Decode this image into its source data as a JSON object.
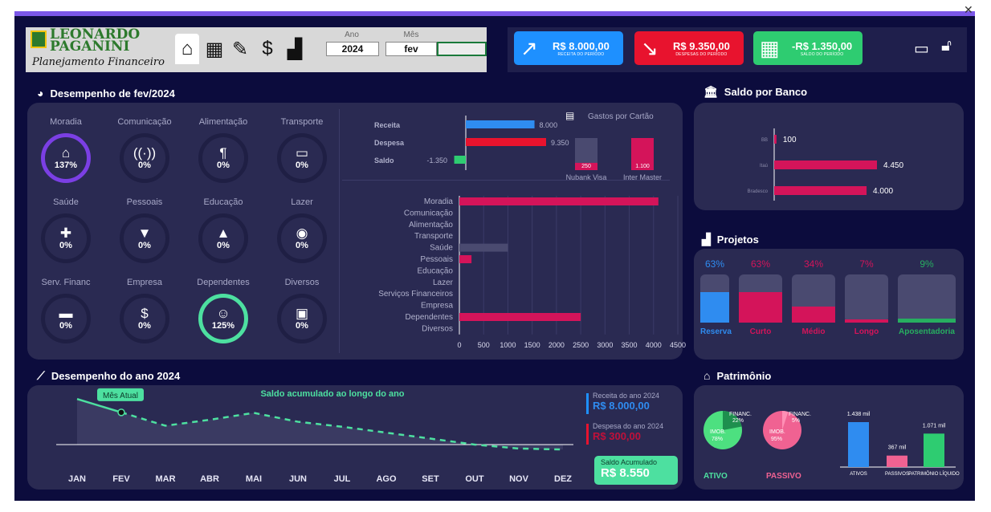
{
  "header": {
    "logo_line1": "LEONARDO",
    "logo_line2": "PAGANINI",
    "logo_subtitle": "Planejamento Financeiro",
    "year_label": "Ano",
    "year_value": "2024",
    "month_label": "Mês",
    "month_value": "fev"
  },
  "kpis": [
    {
      "value": "R$ 8.000,00",
      "label": "RECEITA DO PERÍODO",
      "color": "#1e90ff"
    },
    {
      "value": "R$ 9.350,00",
      "label": "DESPESAS DO PERÍODO",
      "color": "#e8132e"
    },
    {
      "value": "-R$ 1.350,00",
      "label": "SALDO DO PERÍODO",
      "color": "#2ecc71"
    }
  ],
  "month_section": {
    "title": "Desempenho de fev/2024",
    "categories": [
      {
        "label": "Moradia",
        "percent": "137%",
        "highlight": "#7b3fe4"
      },
      {
        "label": "Comunicação",
        "percent": "0%"
      },
      {
        "label": "Alimentação",
        "percent": "0%"
      },
      {
        "label": "Transporte",
        "percent": "0%"
      },
      {
        "label": "Saúde",
        "percent": "0%"
      },
      {
        "label": "Pessoais",
        "percent": "0%"
      },
      {
        "label": "Educação",
        "percent": "0%"
      },
      {
        "label": "Lazer",
        "percent": "0%"
      },
      {
        "label": "Serv. Financ",
        "percent": "0%"
      },
      {
        "label": "Empresa",
        "percent": "0%"
      },
      {
        "label": "Dependentes",
        "percent": "125%",
        "highlight": "#4de0a0"
      },
      {
        "label": "Diversos",
        "percent": "0%"
      }
    ]
  },
  "chart_data": [
    {
      "type": "bar",
      "orientation": "horizontal",
      "categories": [
        "Receita",
        "Despesa",
        "Saldo"
      ],
      "values": [
        8000,
        9350,
        -1350
      ],
      "data_labels": [
        "8.000",
        "9.350",
        "-1.350"
      ]
    },
    {
      "type": "bar",
      "title": "Gastos por Cartão",
      "categories": [
        "Nubank Visa",
        "Inter Master"
      ],
      "series": [
        {
          "values": [
            250,
            1100
          ],
          "data_labels": [
            "250",
            "1.100"
          ]
        }
      ]
    },
    {
      "type": "bar",
      "orientation": "horizontal",
      "categories": [
        "Moradia",
        "Comunicação",
        "Alimentação",
        "Transporte",
        "Saúde",
        "Pessoais",
        "Educação",
        "Lazer",
        "Serviços Financeiros",
        "Empresa",
        "Dependentes",
        "Diversos"
      ],
      "values": [
        4100,
        0,
        0,
        0,
        1000,
        250,
        0,
        0,
        0,
        0,
        2500,
        0
      ],
      "xticks": [
        "0",
        "500",
        "1000",
        "1500",
        "2000",
        "2500",
        "3000",
        "3500",
        "4000",
        "4500"
      ],
      "xlim": [
        0,
        4500
      ]
    },
    {
      "type": "bar",
      "orientation": "horizontal",
      "title": "Saldo por Banco",
      "categories": [
        "BB",
        "Itaú",
        "Bradesco"
      ],
      "values": [
        100,
        4450,
        4000
      ],
      "data_labels": [
        "100",
        "4.450",
        "4.000"
      ]
    },
    {
      "type": "line",
      "title": "Saldo acumulado ao longo do ano",
      "categories": [
        "JAN",
        "FEV",
        "MAR",
        "ABR",
        "MAI",
        "JUN",
        "JUL",
        "AGO",
        "SET",
        "OUT",
        "NOV",
        "DEZ"
      ],
      "values": [
        9900,
        8550,
        7200,
        7800,
        8500,
        7600,
        7100,
        6500,
        5900,
        5300,
        4900,
        4800
      ],
      "annotation": "Mês Atual"
    },
    {
      "type": "bar",
      "title": "Projetos",
      "categories": [
        "Reserva",
        "Curto",
        "Médio",
        "Longo",
        "Aposentadoria"
      ],
      "values": [
        63,
        63,
        34,
        7,
        9
      ],
      "data_labels": [
        "63%",
        "63%",
        "34%",
        "7%",
        "9%"
      ],
      "colors": [
        "#2f8cf0",
        "#d4145a",
        "#d4145a",
        "#d4145a",
        "#27ae60"
      ]
    },
    {
      "type": "pie",
      "title": "ATIVO",
      "slices": [
        {
          "label": "FINANC.",
          "value": 22
        },
        {
          "label": "IMOB.",
          "value": 78
        }
      ],
      "data_labels": [
        "22%",
        "78%"
      ]
    },
    {
      "type": "pie",
      "title": "PASSIVO",
      "slices": [
        {
          "label": "FINANC.",
          "value": 5
        },
        {
          "label": "IMOB.",
          "value": 95
        }
      ],
      "data_labels": [
        "5%",
        "95%"
      ]
    },
    {
      "type": "bar",
      "categories": [
        "ATIVOS",
        "PASSIVOS",
        "PATRIMÔNIO LÍQUIDO"
      ],
      "values": [
        1438,
        367,
        1071
      ],
      "data_labels": [
        "1.438 mil",
        "367 mil",
        "1.071 mil"
      ],
      "colors": [
        "#2f8cf0",
        "#f06292",
        "#2ecc71"
      ]
    }
  ],
  "side": {
    "bank_title": "Saldo por Banco",
    "projects_title": "Projetos",
    "patrimonio_title": "Patrimônio"
  },
  "year_section": {
    "title": "Desempenho do ano 2024",
    "receita_label": "Receita do ano 2024",
    "receita_value": "R$ 8.000,00",
    "despesa_label": "Despesa do ano 2024",
    "despesa_value": "R$ 300,00",
    "saldo_label": "Saldo Acumulado",
    "saldo_value": "R$ 8.550"
  }
}
